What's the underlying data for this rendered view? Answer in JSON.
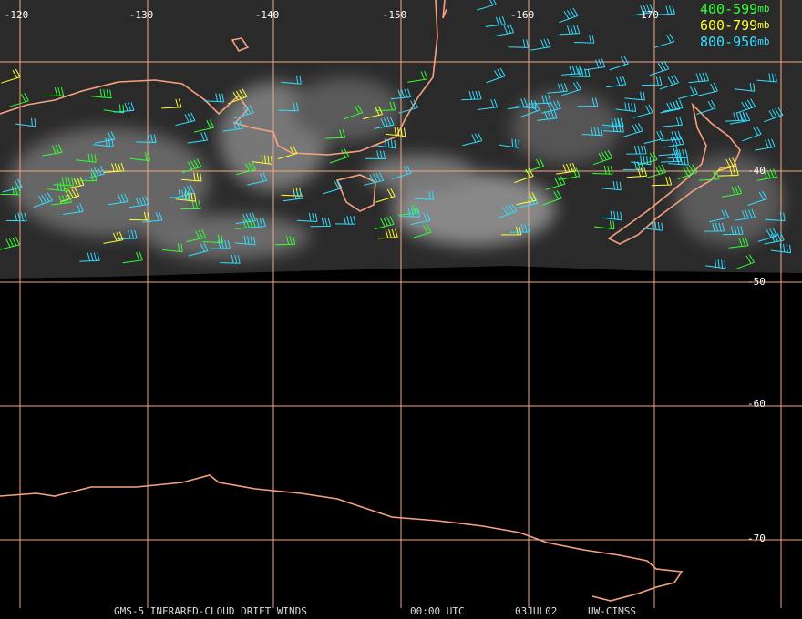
{
  "map": {
    "longitude_labels": [
      "-120",
      "-130",
      "-140",
      "-150",
      "-160",
      "170"
    ],
    "latitude_labels": [
      "-40",
      "-50",
      "-60",
      "-70"
    ],
    "legend": [
      {
        "range": "400-599",
        "unit": "mb",
        "color": "#33ff33"
      },
      {
        "range": "600-799",
        "unit": "mb",
        "color": "#ffff33"
      },
      {
        "range": "800-950",
        "unit": "mb",
        "color": "#33ddff"
      }
    ],
    "footer": {
      "product": "GMS-5 INFRARED-CLOUD DRIFT WINDS",
      "time": "00:00 UTC",
      "date": "03JUL02",
      "source": "UW-CIMSS"
    }
  }
}
